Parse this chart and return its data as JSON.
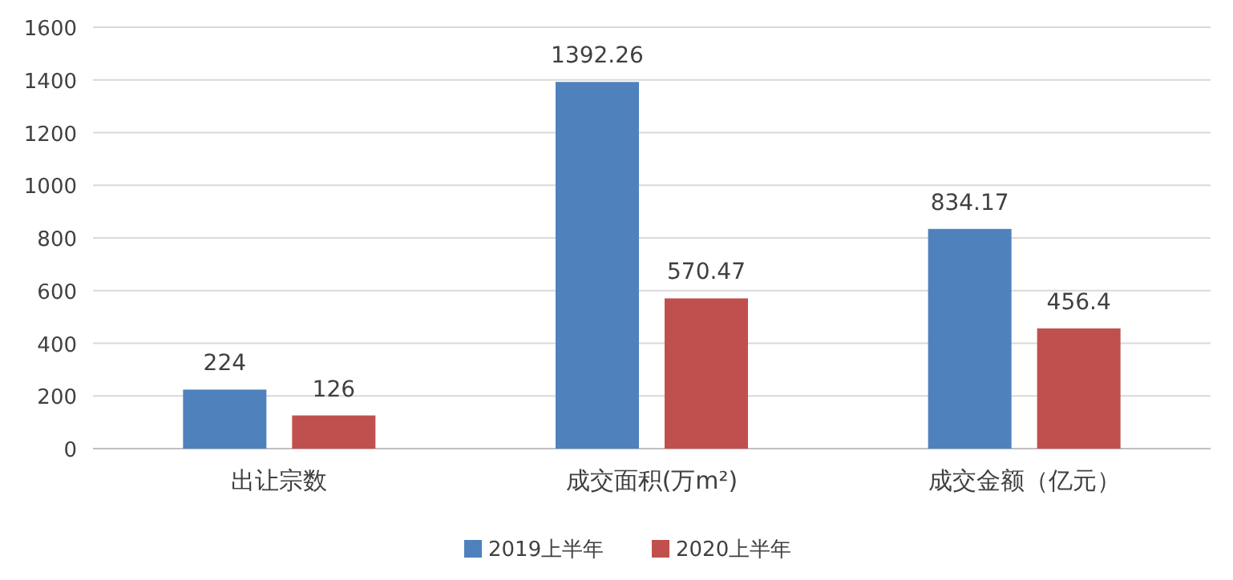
{
  "chart_data": {
    "type": "bar",
    "categories": [
      "出让宗数",
      "成交面积(万m²)",
      "成交金额（亿元）"
    ],
    "series": [
      {
        "name": "2019上半年",
        "color": "#4f81bd",
        "values": [
          224,
          1392.26,
          834.17
        ]
      },
      {
        "name": "2020上半年",
        "color": "#c0504d",
        "values": [
          126,
          570.47,
          456.4
        ]
      }
    ],
    "ylim": [
      0,
      1600
    ],
    "yticks": [
      0,
      200,
      400,
      600,
      800,
      1000,
      1200,
      1400,
      1600
    ],
    "grid": "y",
    "legend": "bottom",
    "data_labels": true
  }
}
